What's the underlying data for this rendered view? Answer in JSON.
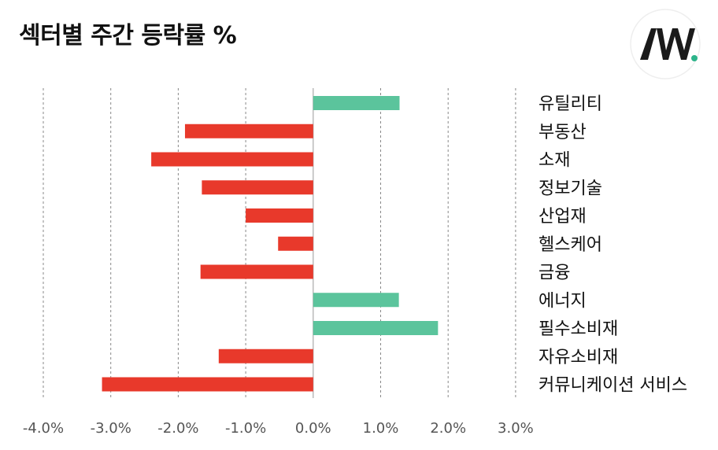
{
  "header": {
    "title": "섹터별 주간 등락률 %"
  },
  "logo": {
    "icon": "aw-logo-icon",
    "text": "AW.",
    "colors": {
      "dark": "#1a1a1a",
      "green": "#2db48a",
      "border": "#eeeeee"
    }
  },
  "colors": {
    "positive": "#5bc49c",
    "negative": "#e8392b",
    "grid": "#888888",
    "zero": "#aaaaaa"
  },
  "chart_data": {
    "type": "bar",
    "orientation": "horizontal",
    "title": "섹터별 주간 등락률 %",
    "xlabel": "",
    "ylabel": "",
    "xlim": [
      -4.0,
      3.0
    ],
    "grid": true,
    "tick_values": [
      -4.0,
      -3.0,
      -2.0,
      -1.0,
      0.0,
      1.0,
      2.0,
      3.0
    ],
    "tick_labels": [
      "-4.0%",
      "-3.0%",
      "-2.0%",
      "-1.0%",
      "0.0%",
      "1.0%",
      "2.0%",
      "3.0%"
    ],
    "categories": [
      "유틸리티",
      "부동산",
      "소재",
      "정보기술",
      "산업재",
      "헬스케어",
      "금융",
      "에너지",
      "필수소비재",
      "자유소비재",
      "커뮤니케이션 서비스"
    ],
    "values": [
      1.28,
      -1.9,
      -2.4,
      -1.65,
      -1.0,
      -0.52,
      -1.67,
      1.27,
      1.85,
      -1.4,
      -3.13
    ]
  }
}
